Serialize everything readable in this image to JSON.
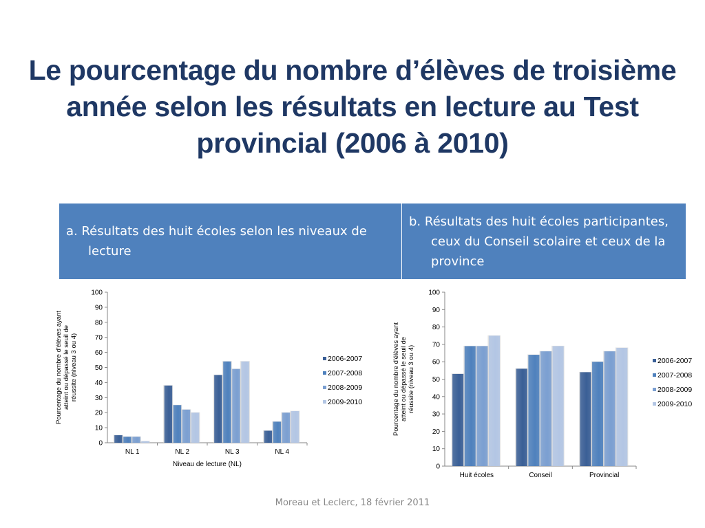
{
  "slide": {
    "title": "Le pourcentage du nombre d’élèves de troisième année selon les résultats en lecture au Test provincial (2006 à 2010)",
    "header_a": "a. Résultats des huit écoles selon les niveaux de lecture",
    "header_b": "b. Résultats des huit écoles participantes, ceux du Conseil scolaire et ceux de la province",
    "footer": "Moreau et Leclerc, 18 février 2011"
  },
  "colors": {
    "title": "#1f3864",
    "header_bg": "#4f81bd",
    "series": [
      "#3a5f96",
      "#4f81bd",
      "#7b9fd1",
      "#b3c6e4"
    ]
  },
  "chart_data": [
    {
      "type": "bar",
      "categories": [
        "NL 1",
        "NL 2",
        "NL 3",
        "NL 4"
      ],
      "series": [
        {
          "name": "2006-2007",
          "values": [
            5,
            38,
            45,
            8
          ]
        },
        {
          "name": "2007-2008",
          "values": [
            4,
            25,
            54,
            14
          ]
        },
        {
          "name": "2008-2009",
          "values": [
            4,
            22,
            49,
            20
          ]
        },
        {
          "name": "2009-2010",
          "values": [
            1,
            20,
            54,
            21
          ]
        }
      ],
      "title": "",
      "xlabel": "Niveau de lecture (NL)",
      "ylabel": "Pourcentage du nombre d'élèves ayant atteint ou dépassé le seuil de réussite (niveau 3 ou 4)",
      "ylim": [
        0,
        100
      ],
      "yticks": [
        0,
        10,
        20,
        30,
        40,
        50,
        60,
        70,
        80,
        90,
        100
      ],
      "grid": false,
      "legend": "right"
    },
    {
      "type": "bar",
      "categories": [
        "Huit écoles",
        "Conseil",
        "Provincial"
      ],
      "series": [
        {
          "name": "2006-2007",
          "values": [
            53,
            56,
            54
          ]
        },
        {
          "name": "2007-2008",
          "values": [
            69,
            64,
            60
          ]
        },
        {
          "name": "2008-2009",
          "values": [
            69,
            66,
            66
          ]
        },
        {
          "name": "2009-2010",
          "values": [
            75,
            69,
            68
          ]
        }
      ],
      "title": "",
      "xlabel": "",
      "ylabel": "Pourcentage du nombre d'élèves ayant atteint ou dépassé le seuil de réussite (niveau 3 ou 4)",
      "ylim": [
        0,
        100
      ],
      "yticks": [
        0,
        10,
        20,
        30,
        40,
        50,
        60,
        70,
        80,
        90,
        100
      ],
      "grid": false,
      "legend": "right"
    }
  ]
}
